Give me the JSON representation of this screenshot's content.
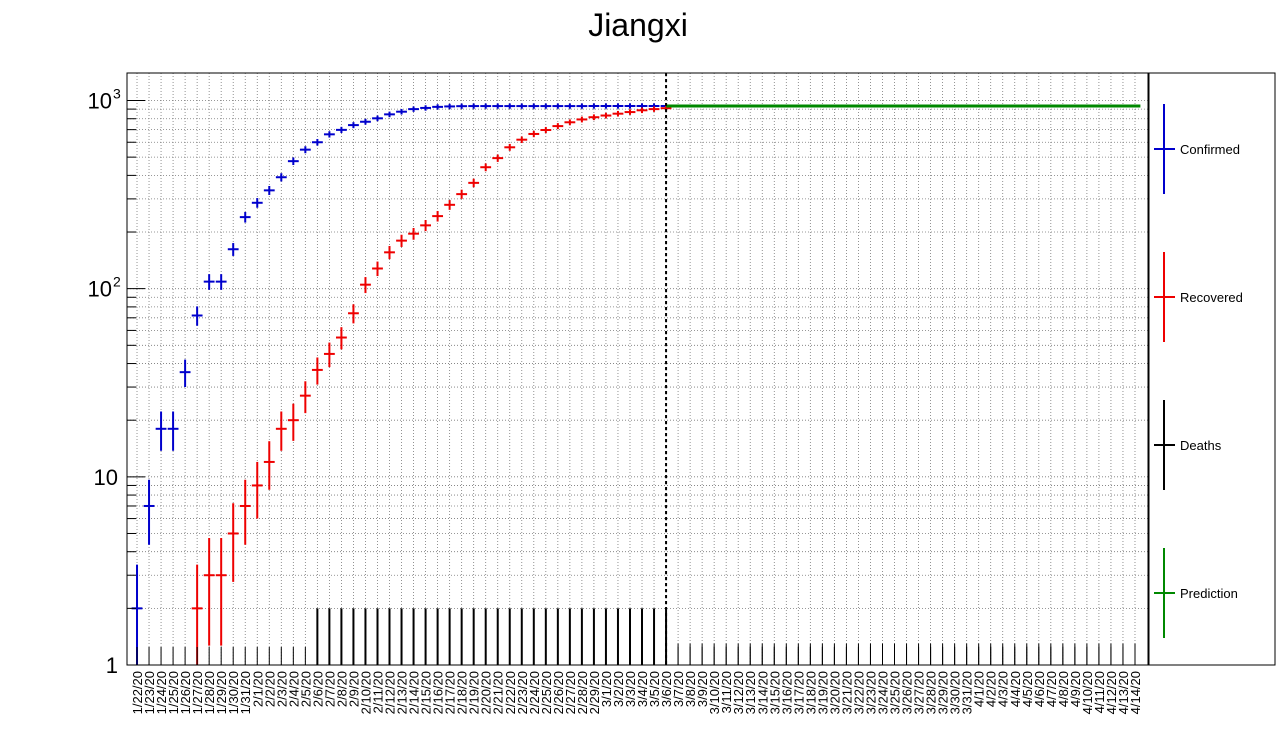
{
  "chart_data": {
    "type": "scatter",
    "title": "Jiangxi",
    "y_scale": "log",
    "ylim": [
      1,
      1400
    ],
    "grid": true,
    "legend_placement": "right",
    "prediction_start": "3/6/20",
    "categories": [
      "1/22/20",
      "1/23/20",
      "1/24/20",
      "1/25/20",
      "1/26/20",
      "1/27/20",
      "1/28/20",
      "1/29/20",
      "1/30/20",
      "1/31/20",
      "2/1/20",
      "2/2/20",
      "2/3/20",
      "2/4/20",
      "2/5/20",
      "2/6/20",
      "2/7/20",
      "2/8/20",
      "2/9/20",
      "2/10/20",
      "2/11/20",
      "2/12/20",
      "2/13/20",
      "2/14/20",
      "2/15/20",
      "2/16/20",
      "2/17/20",
      "2/18/20",
      "2/19/20",
      "2/20/20",
      "2/21/20",
      "2/22/20",
      "2/23/20",
      "2/24/20",
      "2/25/20",
      "2/26/20",
      "2/27/20",
      "2/28/20",
      "2/29/20",
      "3/1/20",
      "3/2/20",
      "3/3/20",
      "3/4/20",
      "3/5/20",
      "3/6/20",
      "3/7/20",
      "3/8/20",
      "3/9/20",
      "3/10/20",
      "3/11/20",
      "3/12/20",
      "3/13/20",
      "3/14/20",
      "3/15/20",
      "3/16/20",
      "3/17/20",
      "3/18/20",
      "3/19/20",
      "3/20/20",
      "3/21/20",
      "3/22/20",
      "3/23/20",
      "3/24/20",
      "3/25/20",
      "3/26/20",
      "3/27/20",
      "3/28/20",
      "3/29/20",
      "3/30/20",
      "3/31/20",
      "4/1/20",
      "4/2/20",
      "4/3/20",
      "4/4/20",
      "4/5/20",
      "4/6/20",
      "4/7/20",
      "4/8/20",
      "4/9/20",
      "4/10/20",
      "4/11/20",
      "4/12/20",
      "4/13/20",
      "4/14/20"
    ],
    "y_ticks": [
      {
        "value": 1,
        "label": "1"
      },
      {
        "value": 10,
        "label": "10"
      },
      {
        "value": 100,
        "label": "10",
        "exp": "2"
      },
      {
        "value": 1000,
        "label": "10",
        "exp": "3"
      }
    ],
    "series": [
      {
        "name": "Confirmed",
        "color": "#0000cc",
        "values": [
          2,
          7,
          18,
          18,
          36,
          72,
          109,
          109,
          162,
          240,
          286,
          333,
          391,
          476,
          548,
          600,
          661,
          698,
          740,
          771,
          804,
          844,
          872,
          900,
          913,
          925,
          930,
          933,
          934,
          934,
          934,
          934,
          934,
          934,
          934,
          934,
          934,
          934,
          935,
          935,
          935,
          935,
          935,
          935,
          935
        ]
      },
      {
        "name": "Recovered",
        "color": "#ee0000",
        "values": [
          null,
          null,
          null,
          null,
          null,
          2,
          3,
          3,
          5,
          7,
          9,
          12,
          18,
          20,
          27,
          37,
          45,
          55,
          74,
          105,
          128,
          156,
          180,
          196,
          217,
          243,
          279,
          318,
          365,
          442,
          494,
          564,
          619,
          664,
          697,
          731,
          766,
          793,
          815,
          832,
          851,
          868,
          887,
          900,
          910
        ]
      },
      {
        "name": "Deaths",
        "color": "#000000",
        "values": [
          null,
          null,
          null,
          null,
          null,
          null,
          null,
          null,
          null,
          null,
          null,
          null,
          null,
          null,
          null,
          1,
          1,
          1,
          1,
          1,
          1,
          1,
          1,
          1,
          1,
          1,
          1,
          1,
          1,
          1,
          1,
          1,
          1,
          1,
          1,
          1,
          1,
          1,
          1,
          1,
          1,
          1,
          1,
          1,
          1
        ]
      },
      {
        "name": "Prediction",
        "color": "#008800",
        "value": 935
      }
    ]
  }
}
